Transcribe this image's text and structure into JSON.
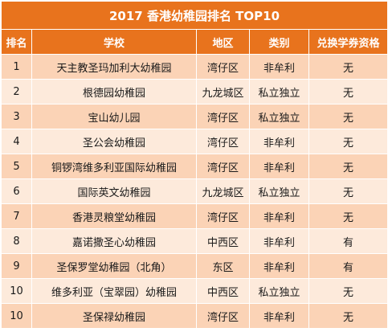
{
  "title": "2017 香港幼稚园排名 TOP10",
  "headers": {
    "rank": "排名",
    "school": "学校",
    "district": "地区",
    "type": "类别",
    "voucher": "兑换学券资格"
  },
  "colors": {
    "header_bg": "#e8731d",
    "header_text": "#ffffff",
    "row_odd_bg": "#fbd3b6",
    "row_even_bg": "#fdeadb"
  },
  "rows": [
    {
      "rank": "1",
      "school": "天主教圣玛加利大幼稚园",
      "district": "湾仔区",
      "type": "非牟利",
      "voucher": "无"
    },
    {
      "rank": "2",
      "school": "根德园幼稚园",
      "district": "九龙城区",
      "type": "私立独立",
      "voucher": "无"
    },
    {
      "rank": "3",
      "school": "宝山幼儿园",
      "district": "湾仔区",
      "type": "私立独立",
      "voucher": "无"
    },
    {
      "rank": "4",
      "school": "圣公会幼稚园",
      "district": "湾仔区",
      "type": "非牟利",
      "voucher": "无"
    },
    {
      "rank": "5",
      "school": "铜锣湾维多利亚国际幼稚园",
      "district": "湾仔区",
      "type": "非牟利",
      "voucher": "无"
    },
    {
      "rank": "6",
      "school": "国际英文幼稚园",
      "district": "九龙城区",
      "type": "私立独立",
      "voucher": "无"
    },
    {
      "rank": "7",
      "school": "香港灵粮堂幼稚园",
      "district": "湾仔区",
      "type": "非牟利",
      "voucher": "无"
    },
    {
      "rank": "8",
      "school": "嘉诺撒圣心幼稚园",
      "district": "中西区",
      "type": "非牟利",
      "voucher": "有"
    },
    {
      "rank": "9",
      "school": "圣保罗堂幼稚园（北角）",
      "district": "东区",
      "type": "非牟利",
      "voucher": "有"
    },
    {
      "rank": "10",
      "school": "维多利亚（宝翠园）幼稚园",
      "district": "中西区",
      "type": "私立独立",
      "voucher": "无"
    },
    {
      "rank": "10",
      "school": "圣保禄幼稚园",
      "district": "湾仔区",
      "type": "非牟利",
      "voucher": "无"
    }
  ]
}
